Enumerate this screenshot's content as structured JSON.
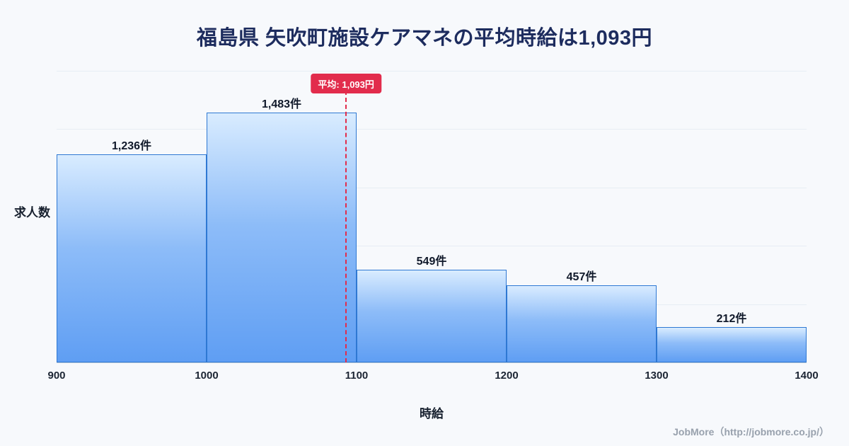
{
  "page": {
    "background_color": "#f7f9fc"
  },
  "chart_data": {
    "type": "bar",
    "title": "福島県 矢吹町施設ケアマネの平均時給は1,093円",
    "xlabel": "時給",
    "ylabel": "求人数",
    "bins": [
      {
        "range": [
          900,
          1000
        ],
        "count": 1236,
        "label": "1,236件"
      },
      {
        "range": [
          1000,
          1100
        ],
        "count": 1483,
        "label": "1,483件"
      },
      {
        "range": [
          1100,
          1200
        ],
        "count": 549,
        "label": "549件"
      },
      {
        "range": [
          1200,
          1300
        ],
        "count": 457,
        "label": "457件"
      },
      {
        "range": [
          1300,
          1400
        ],
        "count": 212,
        "label": "212件"
      }
    ],
    "x_ticks": [
      "900",
      "1000",
      "1100",
      "1200",
      "1300",
      "1400"
    ],
    "xlim": [
      900,
      1400
    ],
    "ylim": [
      0,
      1730
    ],
    "grid": "horizontal-faint",
    "legend": "none",
    "average": {
      "value": 1093,
      "label": "平均: 1,093円"
    },
    "colors": {
      "bar_border": "#2e78d3",
      "bar_gradient_top": "#d9ecff",
      "bar_gradient_bottom": "#5f9ef3",
      "average_red": "#e22c4c",
      "title_navy": "#1d2c5e"
    }
  },
  "footer": {
    "credit": "JobMore（http://jobmore.co.jp/）"
  }
}
